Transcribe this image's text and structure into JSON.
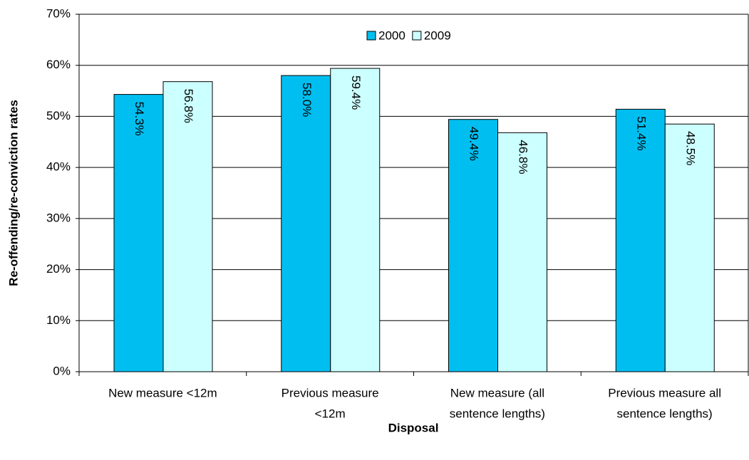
{
  "chart_data": {
    "type": "bar",
    "x_label": "Disposal",
    "y_label": "Re-offending/re-conviction rates",
    "categories": [
      [
        "New measure <12m"
      ],
      [
        "Previous measure",
        "<12m"
      ],
      [
        "New measure (all",
        "sentence lengths)"
      ],
      [
        "Previous measure all",
        "sentence lengths)"
      ]
    ],
    "series": [
      {
        "name": "2000",
        "color": "#00bff0",
        "values": [
          54.3,
          58.0,
          49.4,
          51.4
        ],
        "value_labels": [
          "54.3%",
          "58.0%",
          "49.4%",
          "51.4%"
        ]
      },
      {
        "name": "2009",
        "color": "#ccffff",
        "values": [
          56.8,
          59.4,
          46.8,
          48.5
        ],
        "value_labels": [
          "56.8%",
          "59.4%",
          "46.8%",
          "48.5%"
        ]
      }
    ],
    "ylim": [
      0,
      70
    ],
    "yticks": [
      {
        "value": 0,
        "label": "0%"
      },
      {
        "value": 10,
        "label": "10%"
      },
      {
        "value": 20,
        "label": "20%"
      },
      {
        "value": 30,
        "label": "30%"
      },
      {
        "value": 40,
        "label": "40%"
      },
      {
        "value": 50,
        "label": "50%"
      },
      {
        "value": 60,
        "label": "60%"
      },
      {
        "value": 70,
        "label": "70%"
      }
    ],
    "grid": true,
    "legend": "top"
  }
}
